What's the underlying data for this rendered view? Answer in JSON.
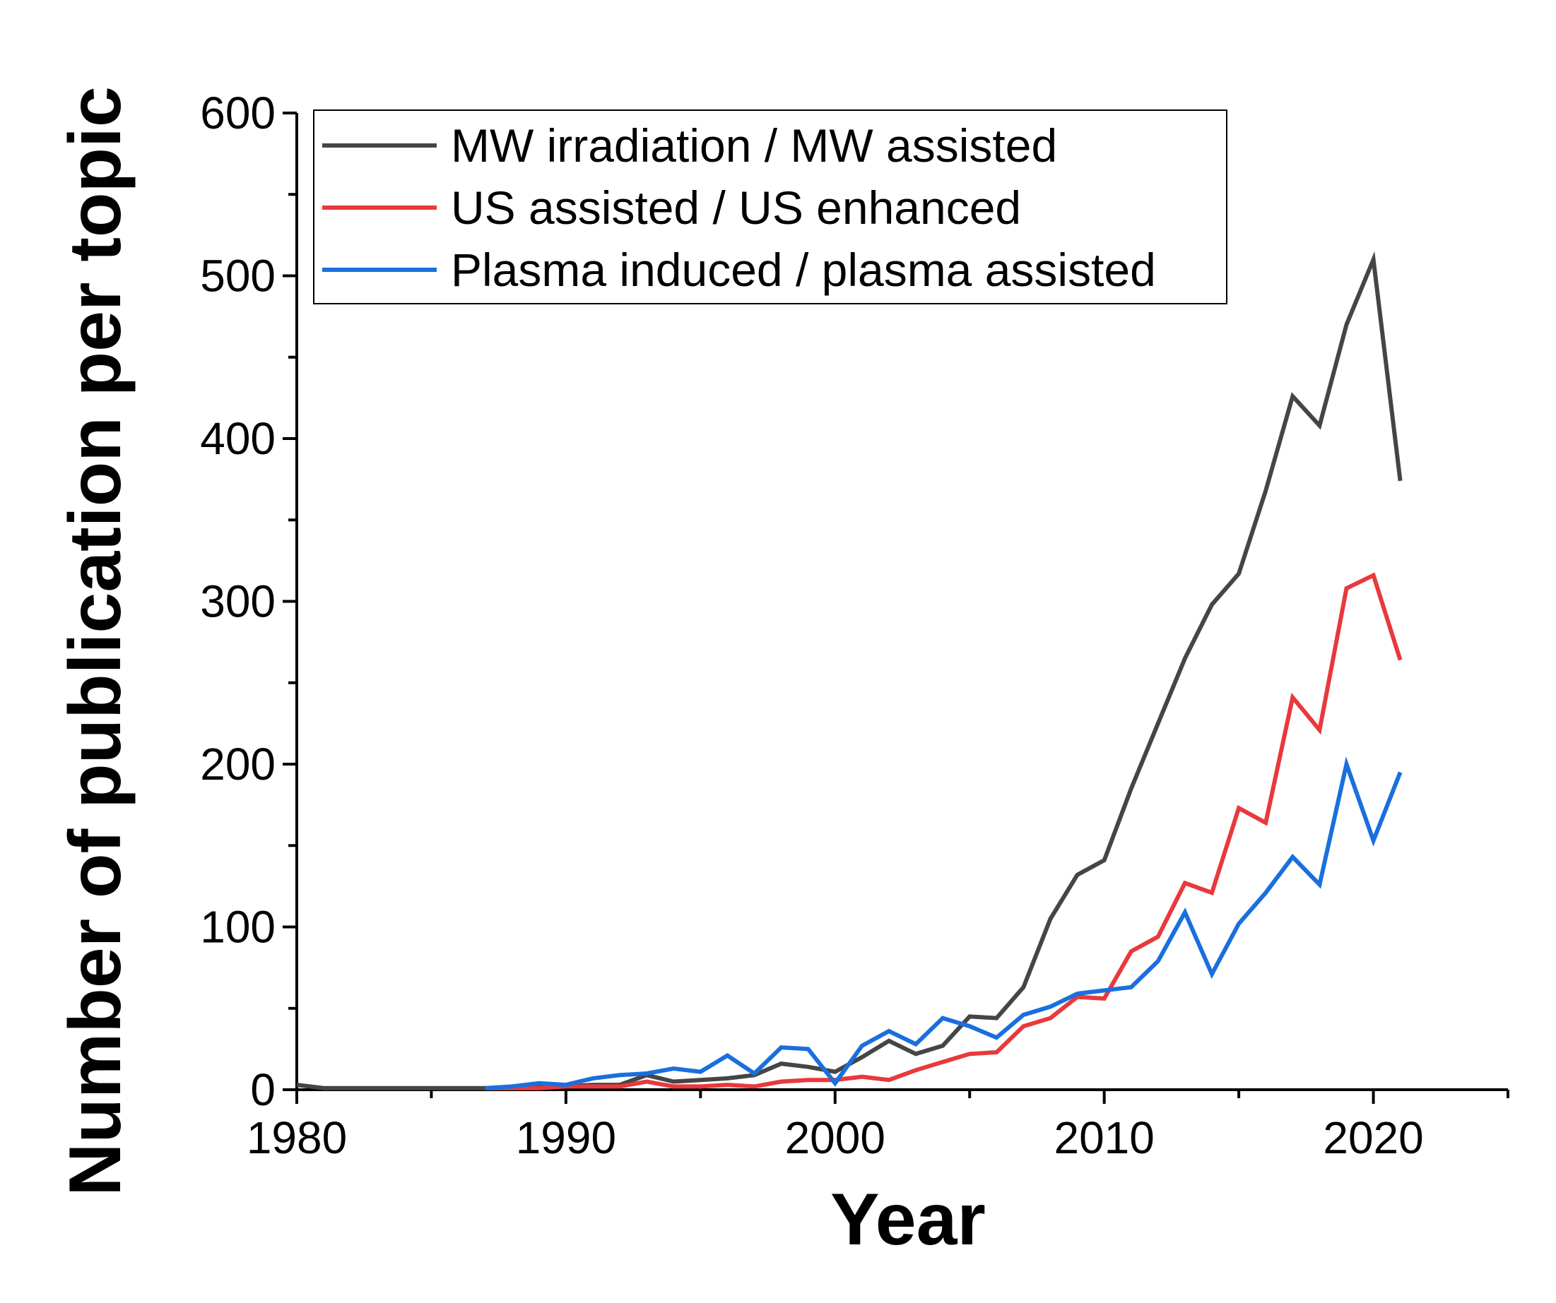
{
  "chart_data": {
    "type": "line",
    "title": "",
    "xlabel": "Year",
    "ylabel": "Number of publication per topic",
    "xlim": [
      1980,
      2025
    ],
    "ylim": [
      0,
      600
    ],
    "xticks": [
      1980,
      1990,
      2000,
      2010,
      2020
    ],
    "yticks": [
      0,
      100,
      200,
      300,
      400,
      500,
      600
    ],
    "legend_position": "top-left",
    "grid": false,
    "series": [
      {
        "name": "MW irradiation / MW assisted",
        "color": "#454545",
        "x": [
          1980,
          1981,
          1982,
          1983,
          1984,
          1985,
          1986,
          1987,
          1988,
          1989,
          1990,
          1991,
          1992,
          1993,
          1994,
          1995,
          1996,
          1997,
          1998,
          1999,
          2000,
          2001,
          2002,
          2003,
          2004,
          2005,
          2006,
          2007,
          2008,
          2009,
          2010,
          2011,
          2012,
          2013,
          2014,
          2015,
          2016,
          2017,
          2018,
          2019,
          2020,
          2021
        ],
        "values": [
          3,
          1,
          1,
          1,
          1,
          1,
          1,
          1,
          1,
          2,
          2,
          3,
          3,
          9,
          5,
          6,
          7,
          9,
          16,
          14,
          11,
          20,
          30,
          22,
          27,
          45,
          44,
          63,
          105,
          132,
          141,
          185,
          225,
          265,
          298,
          317,
          368,
          426,
          408,
          470,
          510,
          374
        ]
      },
      {
        "name": "US assisted / US enhanced",
        "color": "#e8393c",
        "x": [
          1987,
          1988,
          1989,
          1990,
          1991,
          1992,
          1993,
          1994,
          1995,
          1996,
          1997,
          1998,
          1999,
          2000,
          2001,
          2002,
          2003,
          2004,
          2005,
          2006,
          2007,
          2008,
          2009,
          2010,
          2011,
          2012,
          2013,
          2014,
          2015,
          2016,
          2017,
          2018,
          2019,
          2020,
          2021
        ],
        "values": [
          1,
          1,
          1,
          2,
          2,
          2,
          5,
          2,
          2,
          3,
          2,
          5,
          6,
          6,
          8,
          6,
          12,
          17,
          22,
          23,
          39,
          44,
          57,
          56,
          85,
          94,
          127,
          121,
          173,
          164,
          241,
          221,
          308,
          316,
          264
        ]
      },
      {
        "name": "Plasma induced / plasma assisted",
        "color": "#1a6fdd",
        "x": [
          1987,
          1988,
          1989,
          1990,
          1991,
          1992,
          1993,
          1994,
          1995,
          1996,
          1997,
          1998,
          1999,
          2000,
          2001,
          2002,
          2003,
          2004,
          2005,
          2006,
          2007,
          2008,
          2009,
          2010,
          2011,
          2012,
          2013,
          2014,
          2015,
          2016,
          2017,
          2018,
          2019,
          2020,
          2021
        ],
        "values": [
          1,
          2,
          4,
          3,
          7,
          9,
          10,
          13,
          11,
          21,
          10,
          26,
          25,
          4,
          27,
          36,
          28,
          44,
          39,
          32,
          46,
          51,
          59,
          61,
          63,
          79,
          109,
          71,
          102,
          121,
          143,
          126,
          200,
          153,
          195
        ]
      }
    ]
  }
}
